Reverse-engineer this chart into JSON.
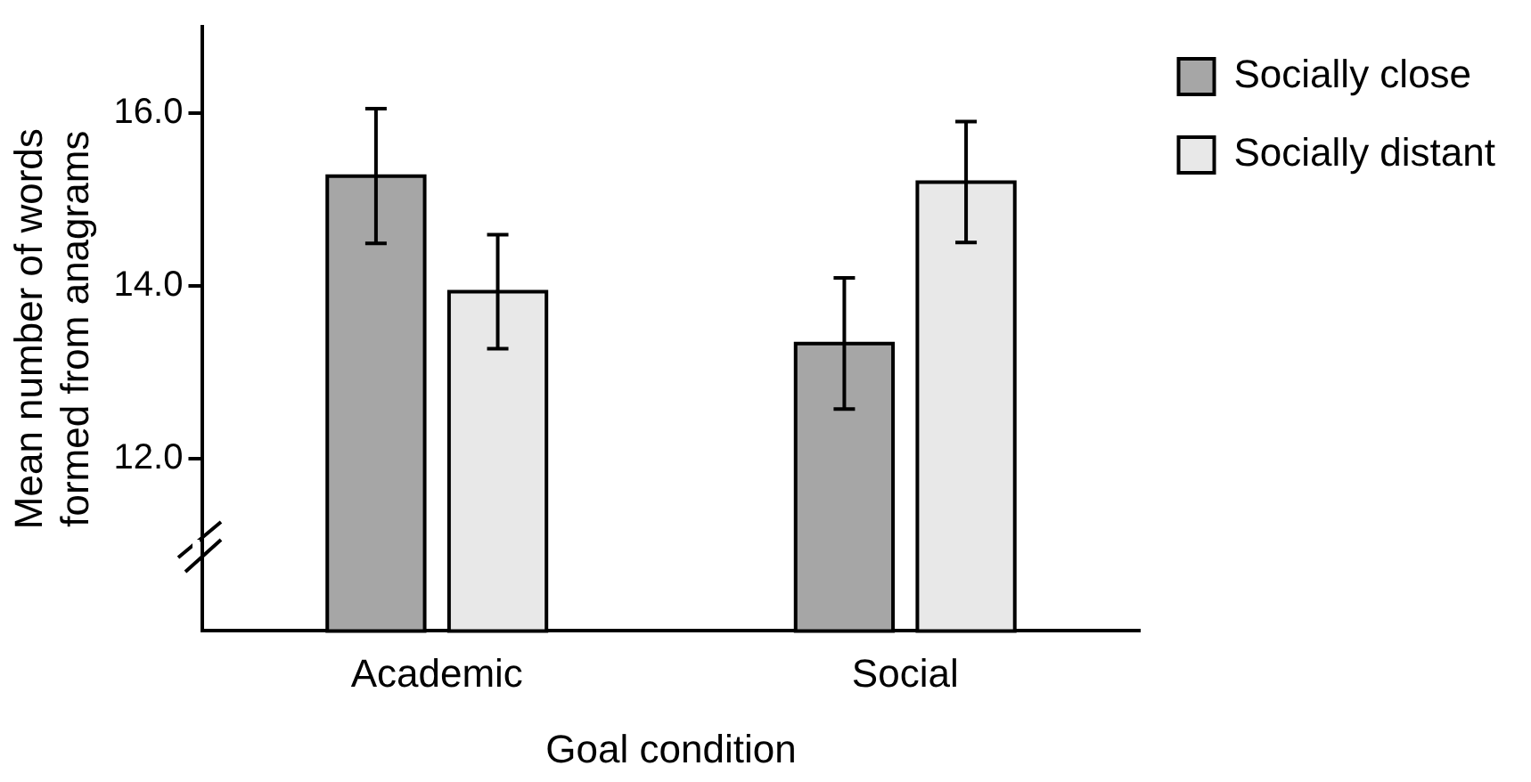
{
  "chart_data": {
    "type": "bar",
    "xlabel": "Goal condition",
    "ylabel": "Mean number of words formed from anagrams",
    "categories": [
      "Academic",
      "Social"
    ],
    "series": [
      {
        "name": "Socially close",
        "color": "#a6a6a6",
        "values": [
          15.27,
          13.33
        ],
        "errors": [
          0.78,
          0.76
        ]
      },
      {
        "name": "Socially distant",
        "color": "#e8e8e8",
        "values": [
          13.93,
          15.2
        ],
        "errors": [
          0.66,
          0.7
        ]
      }
    ],
    "ylim": [
      10,
      17
    ],
    "yticks": [
      {
        "value": 12,
        "label": "12.0"
      },
      {
        "value": 14,
        "label": "14.0"
      },
      {
        "value": 16,
        "label": "16.0"
      }
    ],
    "grid": false,
    "legend": "top right"
  }
}
